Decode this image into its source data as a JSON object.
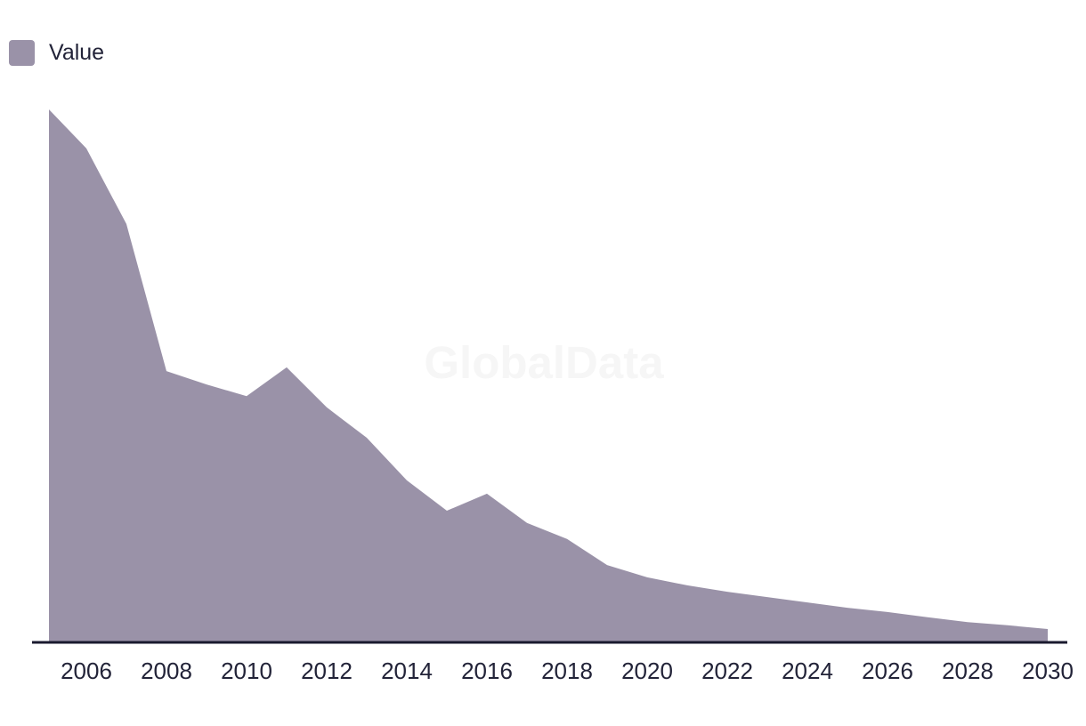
{
  "page": {
    "background": "#ffffff"
  },
  "legend": {
    "label": "Value",
    "swatch_color": "#9a92a8"
  },
  "watermark": {
    "text": "GlobalData",
    "color": "#f6f6f6"
  },
  "axis": {
    "line_color": "#1a1a2f",
    "label_color": "#222338",
    "tick_labels": [
      "2006",
      "2008",
      "2010",
      "2012",
      "2014",
      "2016",
      "2018",
      "2020",
      "2022",
      "2024",
      "2026",
      "2028",
      "2030"
    ]
  },
  "chart_data": {
    "type": "area",
    "title": "",
    "xlabel": "",
    "ylabel": "",
    "x": [
      2005,
      2006,
      2007,
      2008,
      2009,
      2010,
      2011,
      2012,
      2013,
      2014,
      2015,
      2016,
      2017,
      2018,
      2019,
      2020,
      2021,
      2022,
      2023,
      2024,
      2025,
      2026,
      2027,
      2028,
      2029,
      2030
    ],
    "series": [
      {
        "name": "Value",
        "color": "#9a92a8",
        "values": [
          100,
          92.7,
          78.5,
          50.9,
          48.4,
          46.2,
          51.6,
          44.1,
          38.4,
          30.4,
          24.7,
          27.9,
          22.4,
          19.4,
          14.5,
          12.2,
          10.7,
          9.5,
          8.5,
          7.5,
          6.5,
          5.7,
          4.7,
          3.8,
          3.2,
          2.5
        ]
      }
    ],
    "units": "relative index (no y-axis labels shown in chart); 2005 peak = 100",
    "xlim": [
      2005,
      2030
    ],
    "ylim": [
      0,
      100
    ],
    "x_tick_interval": 2,
    "grid": false,
    "y_axis_visible": false,
    "legend_position": "top-left"
  }
}
